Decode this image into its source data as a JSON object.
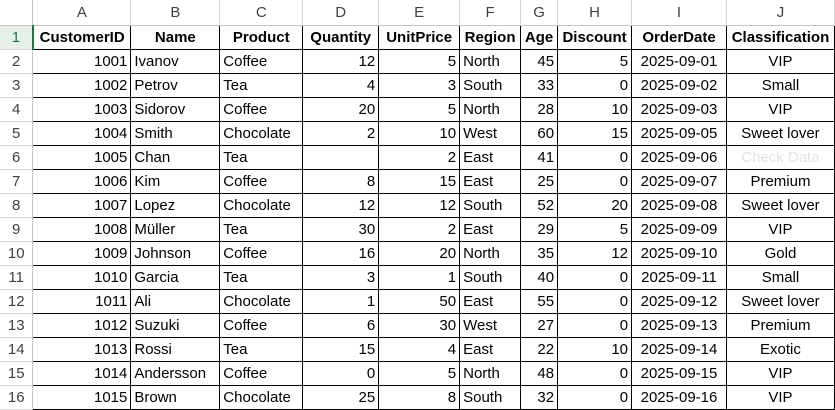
{
  "sheet": {
    "columns": [
      "A",
      "B",
      "C",
      "D",
      "E",
      "F",
      "G",
      "H",
      "I",
      "J"
    ],
    "row_numbers": [
      "1",
      "2",
      "3",
      "4",
      "5",
      "6",
      "7",
      "8",
      "9",
      "10",
      "11",
      "12",
      "13",
      "14",
      "15",
      "16"
    ],
    "headers": [
      "CustomerID",
      "Name",
      "Product",
      "Quantity",
      "UnitPrice",
      "Region",
      "Age",
      "Discount",
      "OrderDate",
      "Classification"
    ],
    "rows": [
      [
        "1001",
        "Ivanov",
        "Coffee",
        "12",
        "5",
        "North",
        "45",
        "5",
        "2025-09-01",
        "VIP"
      ],
      [
        "1002",
        "Petrov",
        "Tea",
        "4",
        "3",
        "South",
        "33",
        "0",
        "2025-09-02",
        "Small"
      ],
      [
        "1003",
        "Sidorov",
        "Coffee",
        "20",
        "5",
        "North",
        "28",
        "10",
        "2025-09-03",
        "VIP"
      ],
      [
        "1004",
        "Smith",
        "Chocolate",
        "2",
        "10",
        "West",
        "60",
        "15",
        "2025-09-05",
        "Sweet lover"
      ],
      [
        "1005",
        "Chan",
        "Tea",
        "",
        "2",
        "East",
        "41",
        "0",
        "2025-09-06",
        "Check Data"
      ],
      [
        "1006",
        "Kim",
        "Coffee",
        "8",
        "15",
        "East",
        "25",
        "0",
        "2025-09-07",
        "Premium"
      ],
      [
        "1007",
        "Lopez",
        "Chocolate",
        "12",
        "12",
        "South",
        "52",
        "20",
        "2025-09-08",
        "Sweet lover"
      ],
      [
        "1008",
        "Müller",
        "Tea",
        "30",
        "2",
        "East",
        "29",
        "5",
        "2025-09-09",
        "VIP"
      ],
      [
        "1009",
        "Johnson",
        "Coffee",
        "16",
        "20",
        "North",
        "35",
        "12",
        "2025-09-10",
        "Gold"
      ],
      [
        "1010",
        "Garcia",
        "Tea",
        "3",
        "1",
        "South",
        "40",
        "0",
        "2025-09-11",
        "Small"
      ],
      [
        "1011",
        "Ali",
        "Chocolate",
        "1",
        "50",
        "East",
        "55",
        "0",
        "2025-09-12",
        "Sweet lover"
      ],
      [
        "1012",
        "Suzuki",
        "Coffee",
        "6",
        "30",
        "West",
        "27",
        "0",
        "2025-09-13",
        "Premium"
      ],
      [
        "1013",
        "Rossi",
        "Tea",
        "15",
        "4",
        "East",
        "22",
        "10",
        "2025-09-14",
        "Exotic"
      ],
      [
        "1014",
        "Andersson",
        "Coffee",
        "0",
        "5",
        "North",
        "48",
        "0",
        "2025-09-15",
        "VIP"
      ],
      [
        "1015",
        "Brown",
        "Chocolate",
        "25",
        "8",
        "South",
        "32",
        "0",
        "2025-09-16",
        "VIP"
      ]
    ],
    "colors": {
      "grid_header_bg": "#ffffff",
      "selected_accent": "#107c41",
      "muted_text": "#e2e2e2"
    }
  }
}
